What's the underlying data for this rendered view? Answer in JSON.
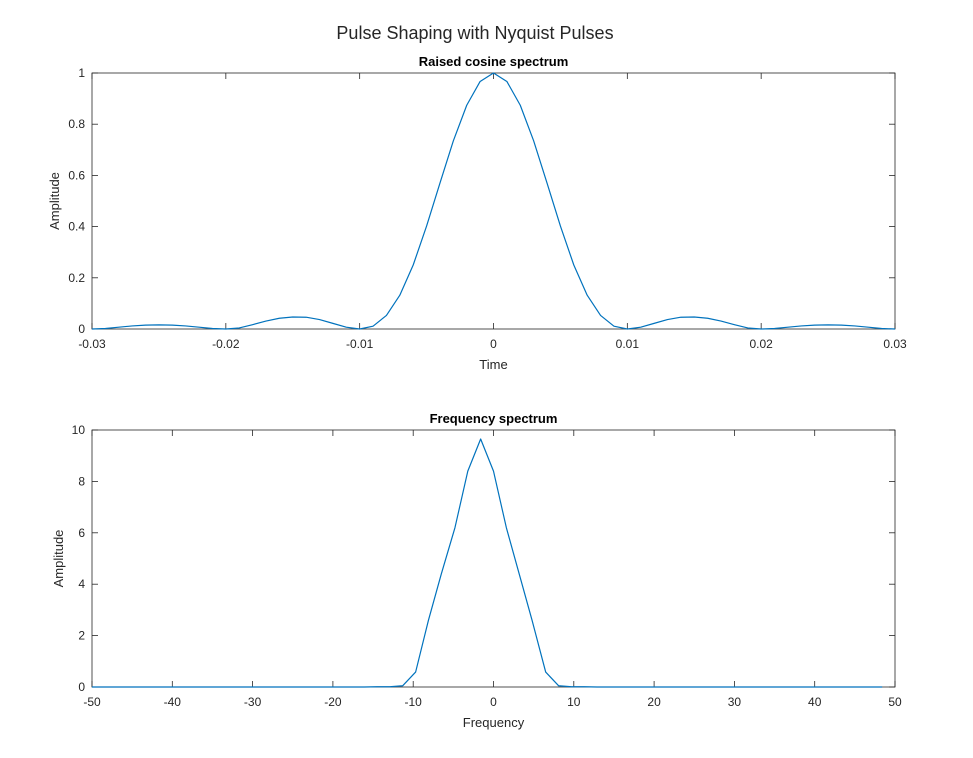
{
  "figure": {
    "title": "Pulse Shaping with Nyquist Pulses"
  },
  "colors": {
    "line": "#0072BD",
    "axes": "#262626",
    "background": "#ffffff"
  },
  "chart_data": [
    {
      "type": "line",
      "title": "Raised cosine spectrum",
      "xlabel": "Time",
      "ylabel": "Amplitude",
      "xlim": [
        -0.03,
        0.03
      ],
      "ylim": [
        0,
        1
      ],
      "xticks": [
        -0.03,
        -0.02,
        -0.01,
        0,
        0.01,
        0.02,
        0.03
      ],
      "xtick_labels": [
        "-0.03",
        "-0.02",
        "-0.01",
        "0",
        "0.01",
        "0.02",
        "0.03"
      ],
      "yticks": [
        0,
        0.2,
        0.4,
        0.6,
        0.8,
        1
      ],
      "ytick_labels": [
        "0",
        "0.2",
        "0.4",
        "0.6",
        "0.8",
        "1"
      ],
      "grid": false,
      "series": [
        {
          "x": [
            -0.03,
            -0.029,
            -0.028,
            -0.027,
            -0.026,
            -0.025,
            -0.024,
            -0.023,
            -0.022,
            -0.021,
            -0.02,
            -0.019,
            -0.018,
            -0.017,
            -0.016,
            -0.015,
            -0.014,
            -0.013,
            -0.012,
            -0.011,
            -0.01,
            -0.009,
            -0.008,
            -0.007,
            -0.006,
            -0.005,
            -0.004,
            -0.003,
            -0.002,
            -0.001,
            0,
            0.001,
            0.002,
            0.003,
            0.004,
            0.005,
            0.006,
            0.007,
            0.008,
            0.009,
            0.01,
            0.011,
            0.012,
            0.013,
            0.014,
            0.015,
            0.016,
            0.017,
            0.018,
            0.019,
            0.02,
            0.021,
            0.022,
            0.023,
            0.024,
            0.025,
            0.026,
            0.027,
            0.028,
            0.029,
            0.03
          ],
          "y": [
            0,
            0.002,
            0.007,
            0.012,
            0.015,
            0.016,
            0.015,
            0.012,
            0.007,
            0.002,
            0,
            0.004,
            0.017,
            0.031,
            0.042,
            0.047,
            0.046,
            0.037,
            0.022,
            0.007,
            0,
            0.011,
            0.053,
            0.132,
            0.25,
            0.402,
            0.57,
            0.735,
            0.874,
            0.967,
            1,
            0.967,
            0.874,
            0.735,
            0.57,
            0.402,
            0.25,
            0.132,
            0.053,
            0.011,
            0,
            0.007,
            0.022,
            0.037,
            0.046,
            0.047,
            0.042,
            0.031,
            0.017,
            0.004,
            0,
            0.002,
            0.007,
            0.012,
            0.015,
            0.016,
            0.015,
            0.012,
            0.007,
            0.002,
            0
          ]
        }
      ]
    },
    {
      "type": "line",
      "title": "Frequency spectrum",
      "xlabel": "Frequency",
      "ylabel": "Amplitude",
      "xlim": [
        -50,
        50
      ],
      "ylim": [
        0,
        10
      ],
      "xticks": [
        -50,
        -40,
        -30,
        -20,
        -10,
        0,
        10,
        20,
        30,
        40,
        50
      ],
      "xtick_labels": [
        "-50",
        "-40",
        "-30",
        "-20",
        "-10",
        "0",
        "10",
        "20",
        "30",
        "40",
        "50"
      ],
      "yticks": [
        0,
        2,
        4,
        6,
        8,
        10
      ],
      "ytick_labels": [
        "0",
        "2",
        "4",
        "6",
        "8",
        "10"
      ],
      "grid": false,
      "series": [
        {
          "x": [
            -50,
            -48.4,
            -46.8,
            -45.2,
            -43.5,
            -41.9,
            -40.3,
            -38.7,
            -37.1,
            -35.5,
            -33.9,
            -32.3,
            -30.6,
            -29,
            -27.4,
            -25.8,
            -24.2,
            -22.6,
            -21,
            -19.4,
            -17.7,
            -16.1,
            -14.5,
            -12.9,
            -11.3,
            -9.7,
            -8.1,
            -6.5,
            -4.8,
            -3.2,
            -1.6,
            0,
            1.6,
            3.2,
            4.8,
            6.5,
            8.1,
            9.7,
            11.3,
            12.9,
            14.5,
            16.1,
            17.7,
            19.4,
            21,
            22.6,
            24.2,
            25.8,
            27.4,
            29,
            30.6,
            32.3,
            33.9,
            35.5,
            37.1,
            38.7,
            40.3,
            41.9,
            43.5,
            45.2,
            46.8,
            48.4
          ],
          "y": [
            0,
            0,
            0,
            0,
            0,
            0,
            0,
            0,
            0,
            0,
            0,
            0,
            0,
            0,
            0,
            0,
            0,
            0,
            0,
            0,
            0,
            0,
            0.01,
            0.01,
            0.05,
            0.58,
            2.6,
            4.4,
            6.2,
            8.4,
            9.65,
            8.4,
            6.2,
            4.4,
            2.6,
            0.58,
            0.05,
            0.01,
            0.01,
            0,
            0,
            0,
            0,
            0,
            0,
            0,
            0,
            0,
            0,
            0,
            0,
            0,
            0,
            0,
            0,
            0,
            0,
            0,
            0,
            0,
            0,
            0
          ]
        }
      ]
    }
  ]
}
